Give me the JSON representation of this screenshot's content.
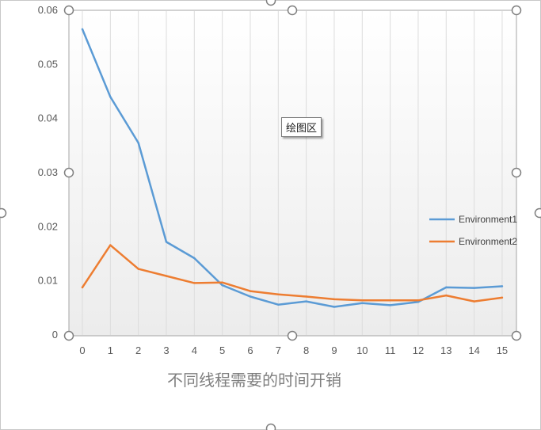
{
  "chart_data": {
    "type": "line",
    "title": "不同线程需要的时间开销",
    "x": [
      0,
      1,
      2,
      3,
      4,
      5,
      6,
      7,
      8,
      9,
      10,
      11,
      12,
      13,
      14,
      15
    ],
    "y_ticks": [
      "0",
      "0.01",
      "0.02",
      "0.03",
      "0.04",
      "0.05",
      "0.06"
    ],
    "ylim": [
      0,
      0.06
    ],
    "legend": "right",
    "series": [
      {
        "name": "Environment1",
        "color": "#5b9bd5",
        "values": [
          0.0565,
          0.044,
          0.0355,
          0.0172,
          0.0142,
          0.0092,
          0.0071,
          0.0056,
          0.0062,
          0.0052,
          0.0059,
          0.0055,
          0.0061,
          0.0088,
          0.0087,
          0.009
        ]
      },
      {
        "name": "Environment2",
        "color": "#ed7d31",
        "values": [
          0.0088,
          0.0166,
          0.0122,
          0.0109,
          0.0096,
          0.0097,
          0.0081,
          0.0075,
          0.0071,
          0.0066,
          0.0064,
          0.0064,
          0.0064,
          0.0073,
          0.0062,
          0.0069
        ]
      }
    ]
  },
  "plot_area_tooltip": "绘图区"
}
